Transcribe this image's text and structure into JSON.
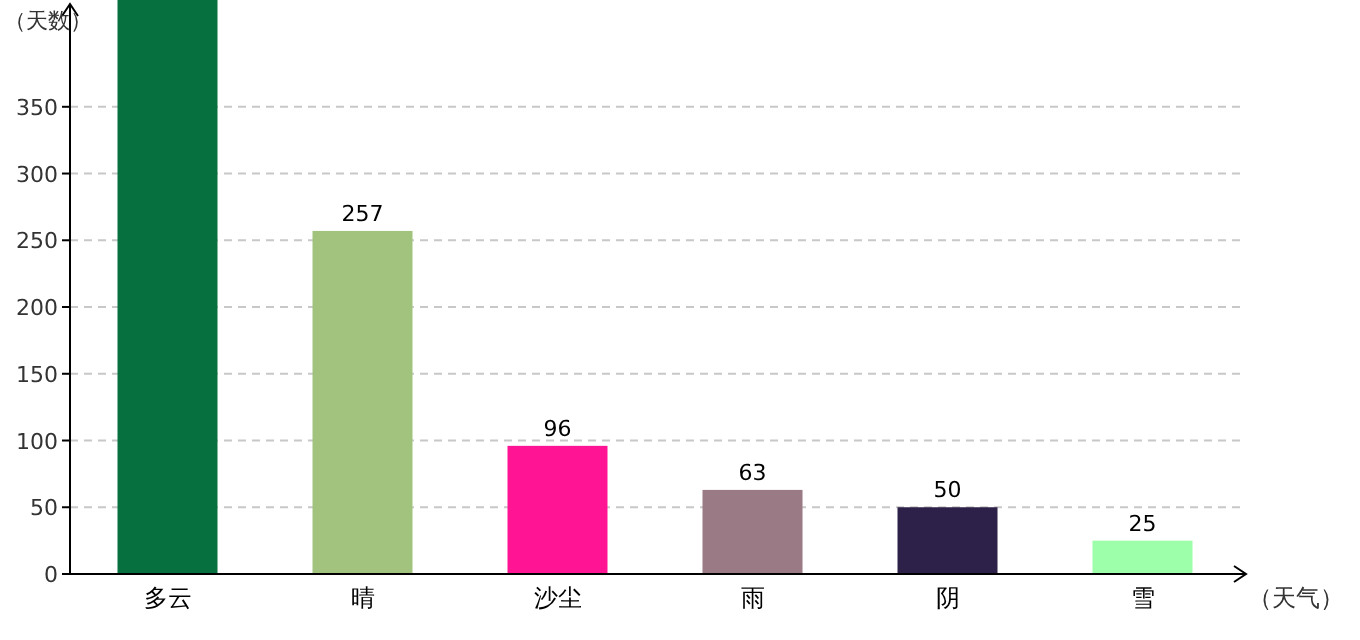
{
  "chart_data": {
    "type": "bar",
    "xlabel": "（天气）",
    "ylabel": "（天数）",
    "categories": [
      "多云",
      "晴",
      "沙尘",
      "雨",
      "阴",
      "雪"
    ],
    "values": [
      430,
      257,
      96,
      63,
      50,
      25
    ],
    "value_labels": [
      null,
      "257",
      "96",
      "63",
      "50",
      "25"
    ],
    "colors": [
      "#07703f",
      "#a1c37e",
      "#ff1493",
      "#9a7a85",
      "#2e2149",
      "#9effaa"
    ],
    "ylim": [
      0,
      430
    ],
    "yticks": [
      0,
      50,
      100,
      150,
      200,
      250,
      300,
      350
    ],
    "grid": "y"
  }
}
